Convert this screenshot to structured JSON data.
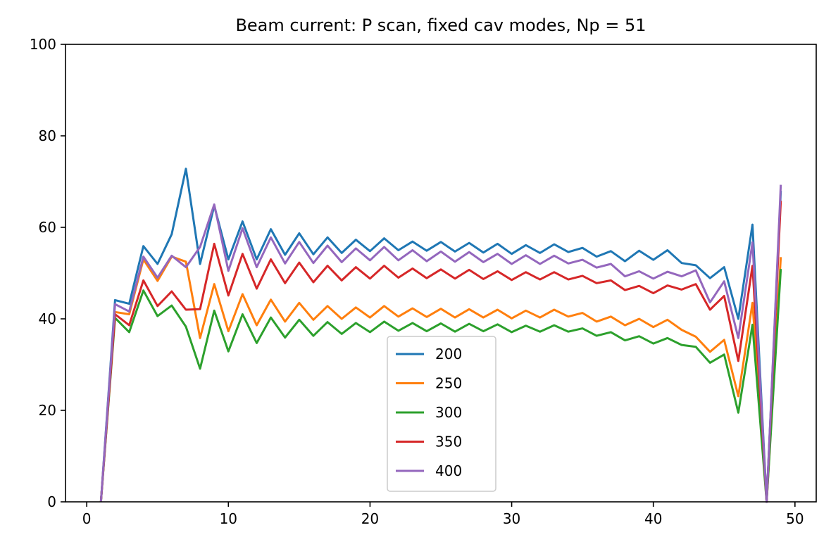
{
  "chart_data": {
    "type": "line",
    "title": "Beam current: P scan, fixed cav modes, Np = 51",
    "xlabel": "",
    "ylabel": "",
    "xlim": [
      -1.5,
      51.5
    ],
    "ylim": [
      0,
      100
    ],
    "xticks": [
      0,
      10,
      20,
      30,
      40,
      50
    ],
    "yticks": [
      0,
      20,
      40,
      60,
      80,
      100
    ],
    "grid": false,
    "legend_position": "lower-center",
    "x": [
      1,
      2,
      3,
      4,
      5,
      6,
      7,
      8,
      9,
      10,
      11,
      12,
      13,
      14,
      15,
      16,
      17,
      18,
      19,
      20,
      21,
      22,
      23,
      24,
      25,
      26,
      27,
      28,
      29,
      30,
      31,
      32,
      33,
      34,
      35,
      36,
      37,
      38,
      39,
      40,
      41,
      42,
      43,
      44,
      45,
      46,
      47,
      48,
      49
    ],
    "series": [
      {
        "name": "200",
        "color": "#1f77b4",
        "values": [
          0,
          44.1,
          43.3,
          55.9,
          52.0,
          58.5,
          72.8,
          52.0,
          64.7,
          53.0,
          61.3,
          53.0,
          59.6,
          54.0,
          58.7,
          54.1,
          57.8,
          54.4,
          57.3,
          54.8,
          57.6,
          55.0,
          56.9,
          54.9,
          56.8,
          54.7,
          56.6,
          54.5,
          56.4,
          54.2,
          56.1,
          54.4,
          56.3,
          54.6,
          55.5,
          53.6,
          54.8,
          52.6,
          54.9,
          52.9,
          55.0,
          52.2,
          51.7,
          48.9,
          51.3,
          40.0,
          60.6,
          0,
          68.0
        ]
      },
      {
        "name": "250",
        "color": "#ff7f0e",
        "values": [
          0,
          41.5,
          41.0,
          53.0,
          48.3,
          53.6,
          52.5,
          35.8,
          47.6,
          37.3,
          45.4,
          38.6,
          44.2,
          39.4,
          43.5,
          39.8,
          42.8,
          40.0,
          42.5,
          40.3,
          42.8,
          40.5,
          42.3,
          40.4,
          42.2,
          40.3,
          42.1,
          40.3,
          42.0,
          40.1,
          41.8,
          40.3,
          42.0,
          40.5,
          41.3,
          39.4,
          40.5,
          38.6,
          40.0,
          38.2,
          39.8,
          37.6,
          36.1,
          32.8,
          35.4,
          23.1,
          43.5,
          0,
          53.5
        ]
      },
      {
        "name": "300",
        "color": "#2ca02c",
        "values": [
          0,
          40.2,
          37.1,
          46.2,
          40.6,
          42.9,
          38.3,
          29.1,
          41.8,
          32.9,
          41.0,
          34.7,
          40.3,
          35.9,
          39.8,
          36.3,
          39.3,
          36.7,
          39.1,
          37.1,
          39.4,
          37.4,
          39.1,
          37.3,
          39.0,
          37.2,
          38.9,
          37.3,
          38.8,
          37.1,
          38.5,
          37.2,
          38.6,
          37.2,
          37.9,
          36.3,
          37.1,
          35.3,
          36.2,
          34.6,
          35.8,
          34.3,
          33.9,
          30.4,
          32.2,
          19.5,
          38.7,
          0,
          50.9
        ]
      },
      {
        "name": "350",
        "color": "#d62728",
        "values": [
          0,
          41.0,
          38.6,
          48.4,
          42.8,
          46.0,
          42.0,
          42.1,
          56.4,
          45.1,
          54.2,
          46.6,
          53.0,
          47.8,
          52.3,
          48.0,
          51.6,
          48.4,
          51.3,
          48.8,
          51.6,
          49.0,
          51.0,
          48.9,
          50.8,
          48.8,
          50.7,
          48.7,
          50.4,
          48.5,
          50.2,
          48.6,
          50.2,
          48.6,
          49.4,
          47.8,
          48.4,
          46.3,
          47.2,
          45.6,
          47.3,
          46.4,
          47.6,
          42.0,
          45.0,
          30.8,
          51.6,
          0,
          65.8
        ]
      },
      {
        "name": "400",
        "color": "#9467bd",
        "values": [
          0,
          43.2,
          41.6,
          53.6,
          49.0,
          53.8,
          51.3,
          55.7,
          65.0,
          50.5,
          59.8,
          51.3,
          57.8,
          52.1,
          56.8,
          52.2,
          56.0,
          52.4,
          55.4,
          52.8,
          55.7,
          52.8,
          55.0,
          52.6,
          54.7,
          52.5,
          54.6,
          52.4,
          54.2,
          52.0,
          53.9,
          52.0,
          53.8,
          52.1,
          52.9,
          51.2,
          52.0,
          49.3,
          50.4,
          48.8,
          50.3,
          49.3,
          50.6,
          43.6,
          48.2,
          35.8,
          56.7,
          0,
          69.3
        ]
      }
    ]
  }
}
